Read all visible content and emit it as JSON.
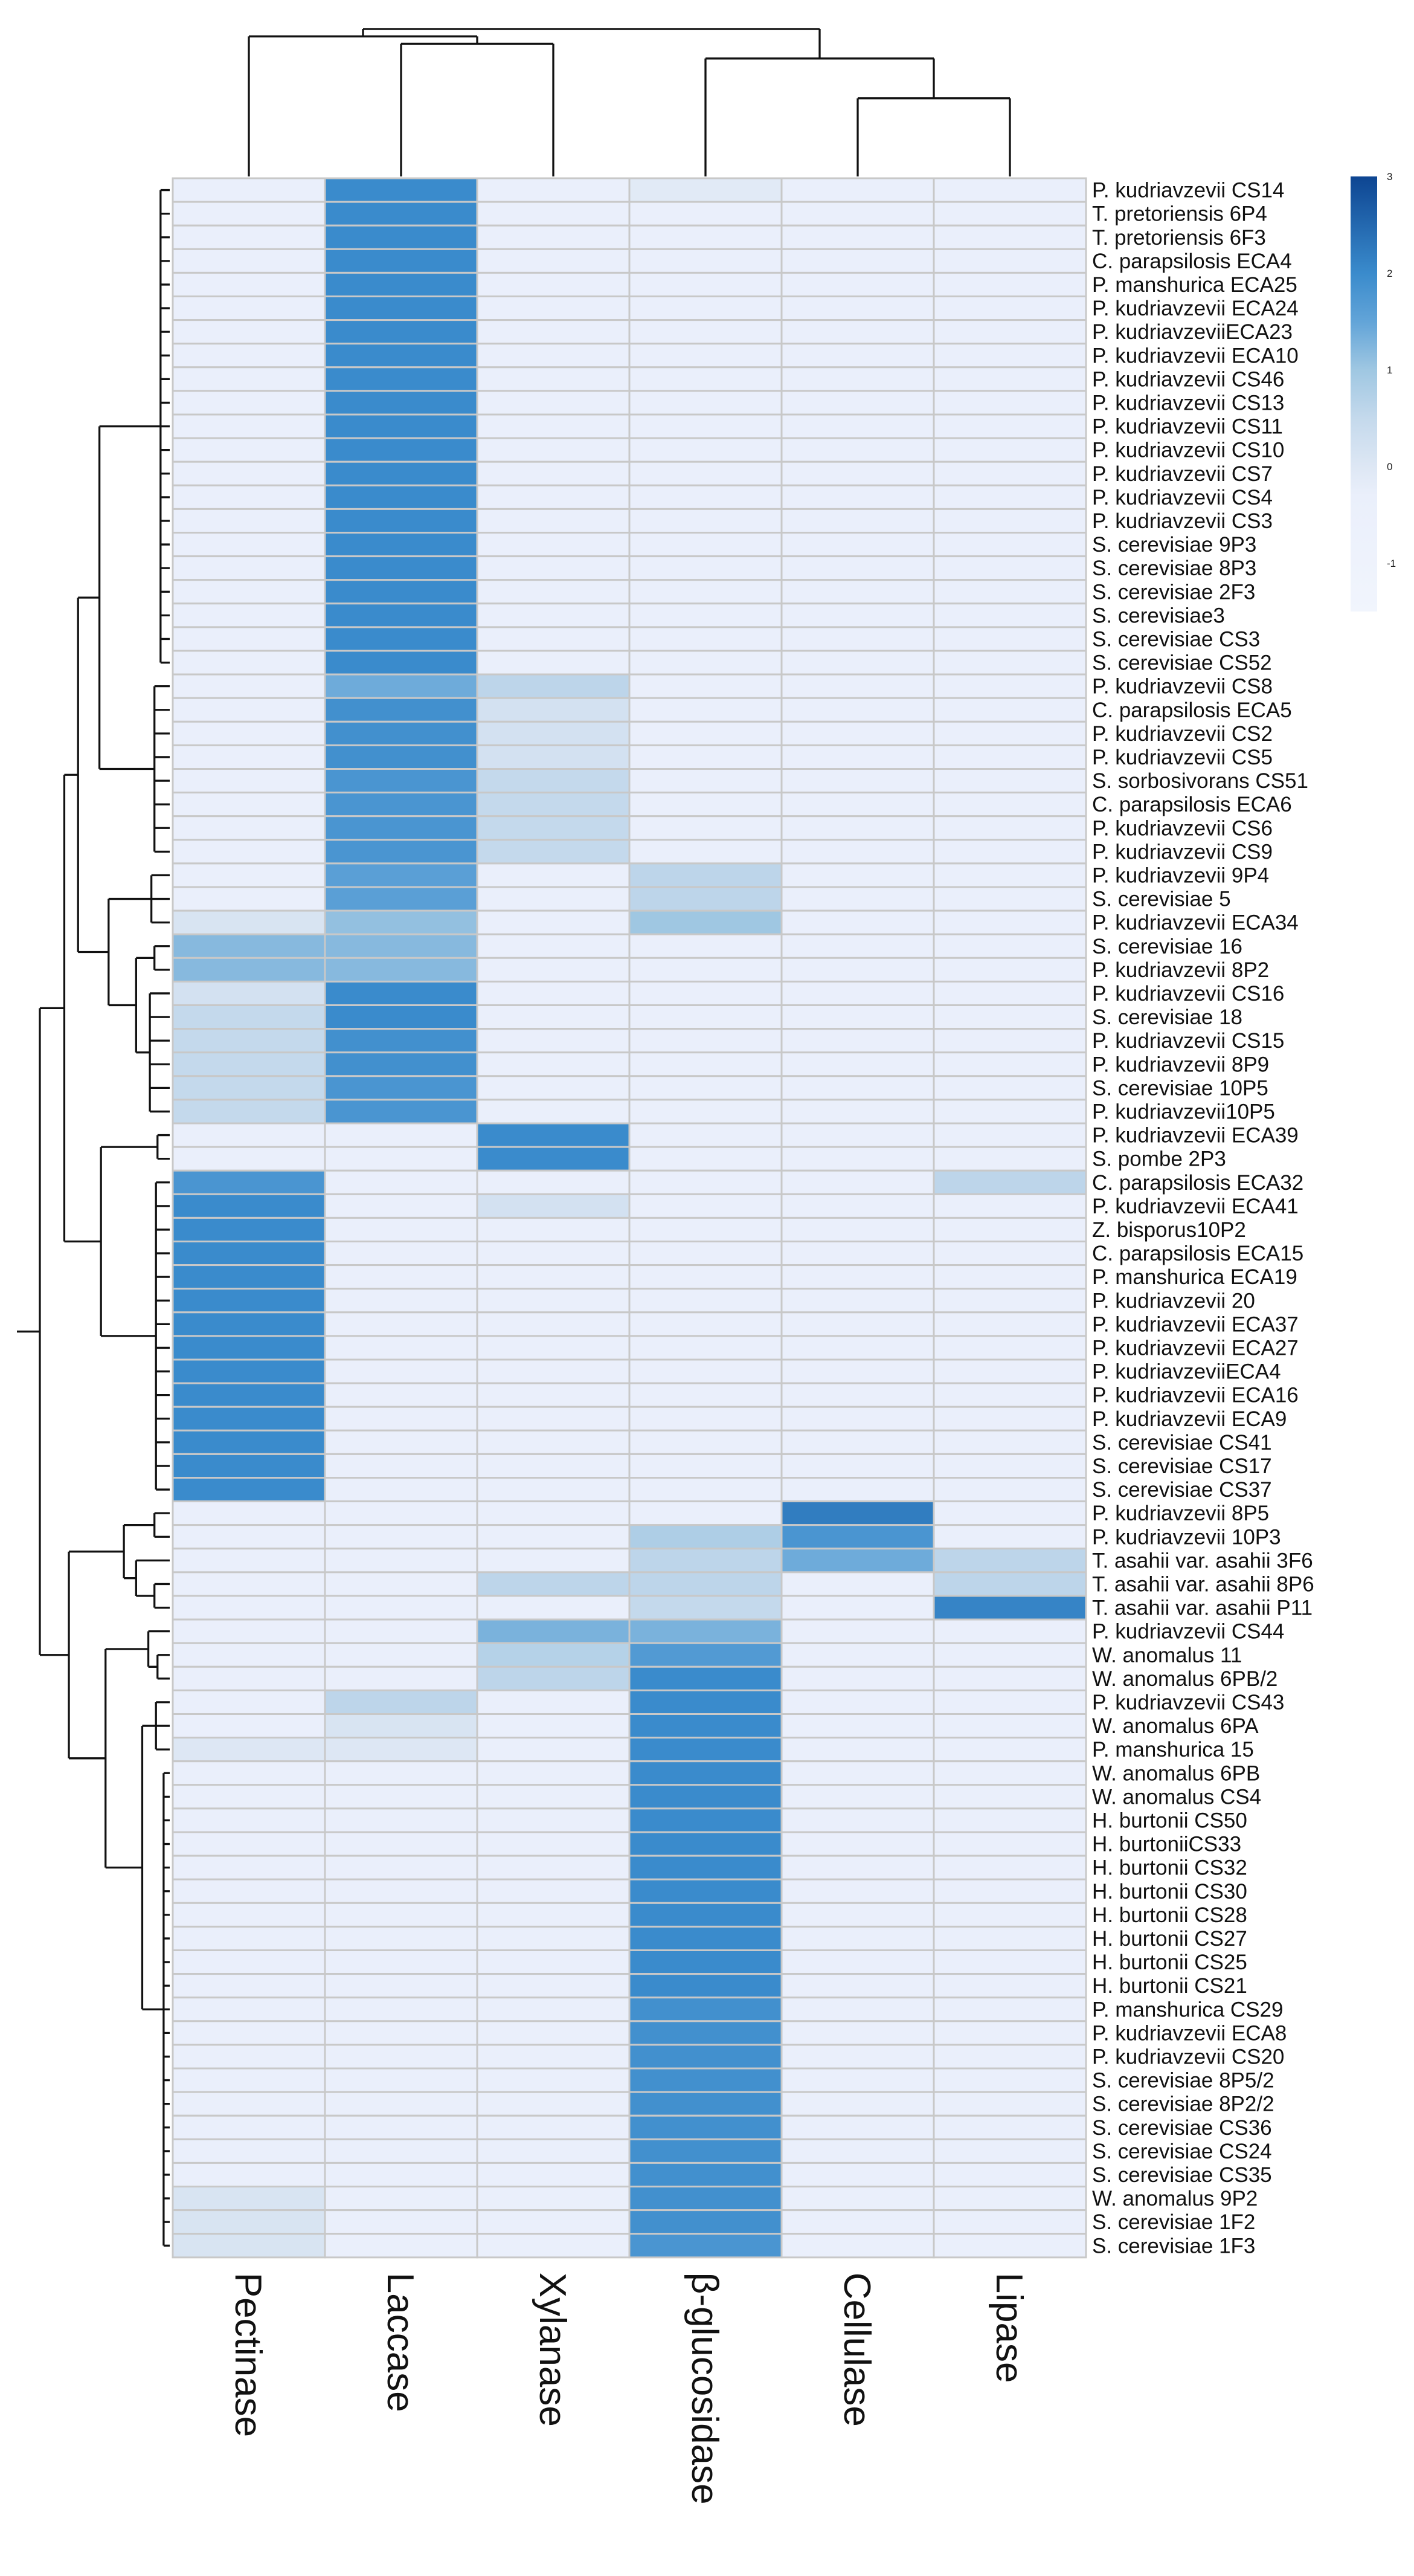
{
  "chart_data": {
    "type": "heatmap",
    "columns": [
      "Pectinase",
      "Laccase",
      "Xylanase",
      "β-glucosidase",
      "Cellulase",
      "Lipase"
    ],
    "rows": [
      "P. kudriavzevii CS14",
      "T. pretoriensis 6P4",
      "T. pretoriensis 6F3",
      "C. parapsilosis ECA4",
      "P. manshurica ECA25",
      "P. kudriavzevii ECA24",
      "P. kudriavzeviiECA23",
      "P. kudriavzevii ECA10",
      "P. kudriavzevii CS46",
      "P. kudriavzevii CS13",
      "P. kudriavzevii CS11",
      "P. kudriavzevii CS10",
      "P. kudriavzevii CS7",
      "P. kudriavzevii CS4",
      "P. kudriavzevii CS3",
      "S. cerevisiae 9P3",
      "S. cerevisiae 8P3",
      "S. cerevisiae 2F3",
      "S. cerevisiae3",
      "S. cerevisiae CS3",
      "S. cerevisiae CS52",
      "P. kudriavzevii CS8",
      "C. parapsilosis  ECA5",
      "P. kudriavzevii CS2",
      "P. kudriavzevii CS5",
      "S. sorbosivorans CS51",
      "C. parapsilosis  ECA6",
      "P. kudriavzevii CS6",
      "P. kudriavzevii CS9",
      "P. kudriavzevii 9P4",
      "S. cerevisiae 5",
      "P. kudriavzevii ECA34",
      "S. cerevisiae 16",
      "P. kudriavzevii 8P2",
      "P. kudriavzevii CS16",
      "S. cerevisiae 18",
      "P. kudriavzevii CS15",
      "P. kudriavzevii 8P9",
      "S. cerevisiae 10P5",
      "P. kudriavzevii10P5",
      "P. kudriavzevii ECA39",
      "S. pombe 2P3",
      "C. parapsilosis ECA32",
      "P. kudriavzevii ECA41",
      "Z. bisporus10P2",
      "C. parapsilosis  ECA15",
      "P. manshurica ECA19",
      "P. kudriavzevii 20",
      "P. kudriavzevii ECA37",
      "P. kudriavzevii ECA27",
      "P. kudriavzeviiECA4",
      "P. kudriavzevii ECA16",
      "P. kudriavzevii ECA9",
      "S. cerevisiae CS41",
      "S. cerevisiae CS17",
      "S. cerevisiae CS37",
      "P. kudriavzevii 8P5",
      "P. kudriavzevii 10P3",
      "T. asahii var. asahii 3F6",
      "T. asahii var. asahii 8P6",
      "T. asahii var. asahii P11",
      "P. kudriavzevii CS44",
      "W. anomalus 11",
      "W. anomalus 6PB/2",
      "P. kudriavzevii CS43",
      "W. anomalus 6PA",
      "P. manshurica 15",
      "W. anomalus 6PB",
      "W. anomalus CS4",
      "H. burtonii CS50",
      "H. burtoniiCS33",
      "H. burtonii CS32",
      "H. burtonii CS30",
      "H. burtonii CS28",
      "H. burtonii CS27",
      "H. burtonii CS25",
      "H. burtonii CS21",
      "P. manshurica CS29",
      "P. kudriavzevii ECA8",
      "P. kudriavzevii CS20",
      "S. cerevisiae 8P5/2",
      "S. cerevisiae 8P2/2",
      "S. cerevisiae CS36",
      "S. cerevisiae CS24",
      "S. cerevisiae CS35",
      "W. anomalus 9P2",
      "S. cerevisiae 1F2",
      "S. cerevisiae 1F3"
    ],
    "values": [
      [
        -0.3,
        2.0,
        -0.3,
        -0.1,
        -0.3,
        -0.3
      ],
      [
        -0.3,
        2.0,
        -0.3,
        -0.3,
        -0.3,
        -0.3
      ],
      [
        -0.3,
        2.0,
        -0.3,
        -0.3,
        -0.3,
        -0.3
      ],
      [
        -0.3,
        2.0,
        -0.3,
        -0.3,
        -0.3,
        -0.3
      ],
      [
        -0.3,
        2.0,
        -0.3,
        -0.3,
        -0.3,
        -0.3
      ],
      [
        -0.3,
        2.0,
        -0.3,
        -0.3,
        -0.3,
        -0.3
      ],
      [
        -0.3,
        2.0,
        -0.3,
        -0.3,
        -0.3,
        -0.3
      ],
      [
        -0.3,
        2.0,
        -0.3,
        -0.3,
        -0.3,
        -0.3
      ],
      [
        -0.3,
        2.0,
        -0.3,
        -0.3,
        -0.3,
        -0.3
      ],
      [
        -0.3,
        2.0,
        -0.3,
        -0.3,
        -0.3,
        -0.3
      ],
      [
        -0.3,
        2.0,
        -0.3,
        -0.3,
        -0.3,
        -0.3
      ],
      [
        -0.3,
        2.0,
        -0.3,
        -0.3,
        -0.3,
        -0.3
      ],
      [
        -0.3,
        2.0,
        -0.3,
        -0.3,
        -0.3,
        -0.3
      ],
      [
        -0.3,
        2.0,
        -0.3,
        -0.3,
        -0.3,
        -0.3
      ],
      [
        -0.3,
        2.0,
        -0.3,
        -0.3,
        -0.3,
        -0.3
      ],
      [
        -0.3,
        2.0,
        -0.3,
        -0.3,
        -0.3,
        -0.3
      ],
      [
        -0.3,
        2.0,
        -0.3,
        -0.3,
        -0.3,
        -0.3
      ],
      [
        -0.3,
        2.0,
        -0.3,
        -0.3,
        -0.3,
        -0.3
      ],
      [
        -0.3,
        2.0,
        -0.3,
        -0.3,
        -0.3,
        -0.3
      ],
      [
        -0.3,
        2.0,
        -0.3,
        -0.3,
        -0.3,
        -0.3
      ],
      [
        -0.3,
        2.0,
        -0.3,
        -0.3,
        -0.3,
        -0.3
      ],
      [
        -0.3,
        1.4,
        0.6,
        -0.3,
        -0.3,
        -0.3
      ],
      [
        -0.3,
        1.9,
        0.2,
        -0.3,
        -0.3,
        -0.3
      ],
      [
        -0.3,
        1.9,
        0.2,
        -0.3,
        -0.3,
        -0.3
      ],
      [
        -0.3,
        1.9,
        0.2,
        -0.3,
        -0.3,
        -0.3
      ],
      [
        -0.3,
        1.8,
        0.5,
        -0.3,
        -0.3,
        -0.3
      ],
      [
        -0.3,
        1.8,
        0.5,
        -0.3,
        -0.3,
        -0.3
      ],
      [
        -0.3,
        1.8,
        0.5,
        -0.3,
        -0.3,
        -0.3
      ],
      [
        -0.3,
        1.8,
        0.5,
        -0.3,
        -0.3,
        -0.3
      ],
      [
        -0.3,
        1.6,
        -0.3,
        0.6,
        -0.3,
        -0.3
      ],
      [
        -0.3,
        1.6,
        -0.3,
        0.6,
        -0.3,
        -0.3
      ],
      [
        0.1,
        1.1,
        -0.3,
        1.0,
        -0.3,
        -0.3
      ],
      [
        1.2,
        1.2,
        -0.3,
        -0.3,
        -0.3,
        -0.3
      ],
      [
        1.2,
        1.2,
        -0.3,
        -0.3,
        -0.3,
        -0.3
      ],
      [
        0.2,
        2.0,
        -0.3,
        -0.3,
        -0.3,
        -0.3
      ],
      [
        0.5,
        2.0,
        -0.3,
        -0.3,
        -0.3,
        -0.3
      ],
      [
        0.5,
        1.9,
        -0.3,
        -0.3,
        -0.3,
        -0.3
      ],
      [
        0.5,
        1.9,
        -0.3,
        -0.3,
        -0.3,
        -0.3
      ],
      [
        0.5,
        1.8,
        -0.3,
        -0.3,
        -0.3,
        -0.3
      ],
      [
        0.5,
        1.8,
        -0.3,
        -0.3,
        -0.3,
        -0.3
      ],
      [
        -0.3,
        -0.3,
        2.0,
        -0.3,
        -0.3,
        -0.3
      ],
      [
        -0.3,
        -0.3,
        2.0,
        -0.3,
        -0.3,
        -0.3
      ],
      [
        1.8,
        -0.3,
        -0.3,
        -0.3,
        -0.3,
        0.6
      ],
      [
        2.0,
        -0.3,
        0.2,
        -0.3,
        -0.3,
        -0.3
      ],
      [
        2.0,
        -0.3,
        -0.3,
        -0.3,
        -0.3,
        -0.3
      ],
      [
        2.0,
        -0.3,
        -0.3,
        -0.3,
        -0.3,
        -0.3
      ],
      [
        2.0,
        -0.3,
        -0.3,
        -0.3,
        -0.3,
        -0.3
      ],
      [
        2.0,
        -0.3,
        -0.3,
        -0.3,
        -0.3,
        -0.3
      ],
      [
        2.0,
        -0.3,
        -0.3,
        -0.3,
        -0.3,
        -0.3
      ],
      [
        2.0,
        -0.3,
        -0.3,
        -0.3,
        -0.3,
        -0.3
      ],
      [
        2.0,
        -0.3,
        -0.3,
        -0.3,
        -0.3,
        -0.3
      ],
      [
        2.0,
        -0.3,
        -0.3,
        -0.3,
        -0.3,
        -0.3
      ],
      [
        2.0,
        -0.3,
        -0.3,
        -0.3,
        -0.3,
        -0.3
      ],
      [
        2.0,
        -0.3,
        -0.3,
        -0.3,
        -0.3,
        -0.3
      ],
      [
        2.0,
        -0.3,
        -0.3,
        -0.3,
        -0.3,
        -0.3
      ],
      [
        2.0,
        -0.3,
        -0.3,
        -0.3,
        -0.3,
        -0.3
      ],
      [
        -0.3,
        -0.3,
        -0.3,
        -0.3,
        2.2,
        -0.3
      ],
      [
        -0.3,
        -0.3,
        -0.3,
        0.8,
        1.8,
        -0.3
      ],
      [
        -0.3,
        -0.3,
        -0.3,
        0.6,
        1.4,
        0.6
      ],
      [
        -0.3,
        -0.3,
        0.6,
        0.6,
        -0.3,
        0.6
      ],
      [
        -0.3,
        -0.3,
        -0.3,
        0.5,
        -0.3,
        2.1
      ],
      [
        -0.3,
        -0.3,
        1.3,
        1.3,
        -0.3,
        -0.3
      ],
      [
        -0.3,
        -0.3,
        0.7,
        1.7,
        -0.3,
        -0.3
      ],
      [
        -0.3,
        -0.3,
        0.6,
        2.0,
        -0.3,
        -0.3
      ],
      [
        -0.3,
        0.6,
        -0.3,
        2.0,
        -0.3,
        -0.3
      ],
      [
        -0.3,
        0.1,
        -0.3,
        2.0,
        -0.3,
        -0.3
      ],
      [
        0.0,
        0.0,
        -0.3,
        2.0,
        -0.3,
        -0.3
      ],
      [
        -0.3,
        -0.3,
        -0.3,
        2.0,
        -0.3,
        -0.3
      ],
      [
        -0.3,
        -0.3,
        -0.3,
        2.0,
        -0.3,
        -0.3
      ],
      [
        -0.3,
        -0.3,
        -0.3,
        2.0,
        -0.3,
        -0.3
      ],
      [
        -0.3,
        -0.3,
        -0.3,
        2.0,
        -0.3,
        -0.3
      ],
      [
        -0.3,
        -0.3,
        -0.3,
        2.0,
        -0.3,
        -0.3
      ],
      [
        -0.3,
        -0.3,
        -0.3,
        2.0,
        -0.3,
        -0.3
      ],
      [
        -0.3,
        -0.3,
        -0.3,
        2.0,
        -0.3,
        -0.3
      ],
      [
        -0.3,
        -0.3,
        -0.3,
        2.0,
        -0.3,
        -0.3
      ],
      [
        -0.3,
        -0.3,
        -0.3,
        2.0,
        -0.3,
        -0.3
      ],
      [
        -0.3,
        -0.3,
        -0.3,
        2.0,
        -0.3,
        -0.3
      ],
      [
        -0.3,
        -0.3,
        -0.3,
        1.9,
        -0.3,
        -0.3
      ],
      [
        -0.3,
        -0.3,
        -0.3,
        1.9,
        -0.3,
        -0.3
      ],
      [
        -0.3,
        -0.3,
        -0.3,
        1.9,
        -0.3,
        -0.3
      ],
      [
        -0.3,
        -0.3,
        -0.3,
        1.9,
        -0.3,
        -0.3
      ],
      [
        -0.3,
        -0.3,
        -0.3,
        1.9,
        -0.3,
        -0.3
      ],
      [
        -0.3,
        -0.3,
        -0.3,
        1.9,
        -0.3,
        -0.3
      ],
      [
        -0.3,
        -0.3,
        -0.3,
        1.9,
        -0.3,
        -0.3
      ],
      [
        -0.3,
        -0.3,
        -0.3,
        1.9,
        -0.3,
        -0.3
      ],
      [
        0.1,
        -0.3,
        -0.3,
        1.9,
        -0.3,
        -0.3
      ],
      [
        0.1,
        -0.3,
        -0.3,
        1.9,
        -0.3,
        -0.3
      ],
      [
        0.1,
        -0.3,
        -0.3,
        1.8,
        -0.3,
        -0.3
      ]
    ],
    "color_scale": {
      "min": -1.5,
      "max": 3,
      "ticks": [
        -1,
        0,
        1,
        2,
        3
      ],
      "stops": [
        {
          "value": -1.5,
          "color": "#f1f5fd"
        },
        {
          "value": -0.3,
          "color": "#eaeffb"
        },
        {
          "value": 0,
          "color": "#dde7f4"
        },
        {
          "value": 0.5,
          "color": "#c4d9ec"
        },
        {
          "value": 1,
          "color": "#9fc7e2"
        },
        {
          "value": 1.5,
          "color": "#62a4d8"
        },
        {
          "value": 2,
          "color": "#3a8bcc"
        },
        {
          "value": 3,
          "color": "#0d4592"
        }
      ]
    },
    "row_dendrogram": true,
    "column_dendrogram": true,
    "legend": "top-right"
  }
}
